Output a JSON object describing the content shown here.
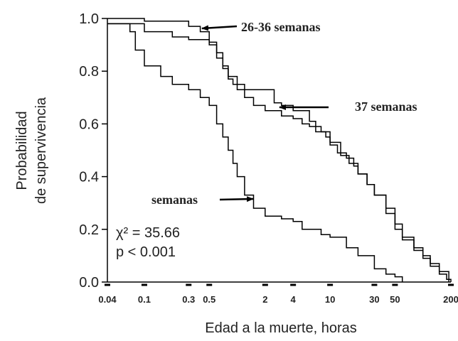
{
  "chart_data": {
    "type": "line",
    "title": "",
    "xlabel": "Edad a la muerte, horas",
    "ylabel_lines": [
      "Probabilidad",
      "de supervivencia"
    ],
    "x_scale": "log",
    "xlim": [
      0.04,
      200
    ],
    "ylim": [
      0,
      1
    ],
    "grid": false,
    "x_ticks": [
      "0.04",
      "0.1",
      "0.3",
      "0.5",
      "2",
      "4",
      "10",
      "30",
      "50",
      "200"
    ],
    "y_ticks": [
      "0.0",
      "0.2",
      "0.4",
      "0.6",
      "0.8",
      "1.0"
    ],
    "series": [
      {
        "name": "26-36 semanas",
        "points": [
          [
            0.04,
            1.0
          ],
          [
            0.05,
            1.0
          ],
          [
            0.1,
            0.99
          ],
          [
            0.3,
            0.97
          ],
          [
            0.4,
            0.95
          ],
          [
            0.5,
            0.91
          ],
          [
            0.6,
            0.87
          ],
          [
            0.7,
            0.82
          ],
          [
            0.8,
            0.78
          ],
          [
            1,
            0.75
          ],
          [
            1.2,
            0.7
          ],
          [
            1.5,
            0.67
          ],
          [
            2,
            0.65
          ],
          [
            3,
            0.63
          ],
          [
            4,
            0.62
          ],
          [
            5,
            0.6
          ],
          [
            6,
            0.59
          ],
          [
            8,
            0.57
          ],
          [
            10,
            0.53
          ],
          [
            13,
            0.48
          ],
          [
            16,
            0.45
          ],
          [
            20,
            0.41
          ],
          [
            25,
            0.37
          ],
          [
            30,
            0.33
          ],
          [
            40,
            0.28
          ],
          [
            50,
            0.22
          ],
          [
            60,
            0.17
          ],
          [
            80,
            0.12
          ],
          [
            100,
            0.09
          ],
          [
            120,
            0.06
          ],
          [
            150,
            0.03
          ],
          [
            180,
            0.01
          ],
          [
            200,
            0.0
          ]
        ]
      },
      {
        "name": "37 semanas",
        "points": [
          [
            0.04,
            0.98
          ],
          [
            0.1,
            0.95
          ],
          [
            0.2,
            0.93
          ],
          [
            0.3,
            0.92
          ],
          [
            0.45,
            0.92
          ],
          [
            0.5,
            0.9
          ],
          [
            0.6,
            0.85
          ],
          [
            0.7,
            0.81
          ],
          [
            0.8,
            0.77
          ],
          [
            0.9,
            0.75
          ],
          [
            1,
            0.73
          ],
          [
            2,
            0.73
          ],
          [
            2.5,
            0.68
          ],
          [
            3,
            0.67
          ],
          [
            4,
            0.65
          ],
          [
            6,
            0.61
          ],
          [
            7,
            0.57
          ],
          [
            9,
            0.55
          ],
          [
            10,
            0.52
          ],
          [
            12,
            0.49
          ],
          [
            15,
            0.47
          ],
          [
            18,
            0.44
          ],
          [
            20,
            0.41
          ],
          [
            25,
            0.37
          ],
          [
            30,
            0.33
          ],
          [
            40,
            0.26
          ],
          [
            50,
            0.2
          ],
          [
            60,
            0.16
          ],
          [
            80,
            0.13
          ],
          [
            100,
            0.1
          ],
          [
            120,
            0.07
          ],
          [
            150,
            0.04
          ],
          [
            190,
            0.0
          ]
        ]
      },
      {
        "name": "semanas",
        "points": [
          [
            0.04,
            0.98
          ],
          [
            0.06,
            0.98
          ],
          [
            0.07,
            0.95
          ],
          [
            0.08,
            0.88
          ],
          [
            0.1,
            0.82
          ],
          [
            0.15,
            0.78
          ],
          [
            0.2,
            0.75
          ],
          [
            0.3,
            0.73
          ],
          [
            0.4,
            0.7
          ],
          [
            0.5,
            0.67
          ],
          [
            0.6,
            0.6
          ],
          [
            0.7,
            0.55
          ],
          [
            0.8,
            0.5
          ],
          [
            0.9,
            0.45
          ],
          [
            1,
            0.4
          ],
          [
            1.2,
            0.33
          ],
          [
            1.5,
            0.28
          ],
          [
            2,
            0.25
          ],
          [
            3,
            0.24
          ],
          [
            4,
            0.23
          ],
          [
            5,
            0.2
          ],
          [
            8,
            0.18
          ],
          [
            10,
            0.17
          ],
          [
            15,
            0.13
          ],
          [
            20,
            0.1
          ],
          [
            30,
            0.05
          ],
          [
            40,
            0.03
          ],
          [
            50,
            0.02
          ],
          [
            60,
            0.0
          ]
        ]
      }
    ],
    "annotations": {
      "arrow_26_36": "26-36 semanas",
      "arrow_37": "37 semanas",
      "arrow_semanas": "semanas",
      "stat_chi": "χ² = 35.66",
      "stat_p": "p < 0.001"
    }
  }
}
